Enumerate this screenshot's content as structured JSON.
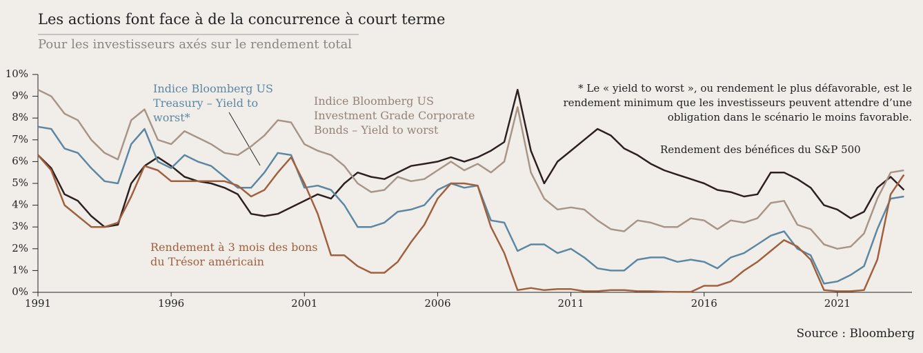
{
  "chart_data": {
    "type": "line",
    "title": "Les actions font face à de la concurrence à court terme",
    "subtitle": "Pour les investisseurs axés sur le rendement total",
    "note": "* Le « yield to worst », ou rendement le plus défavorable, est le rendement minimum que les investisseurs peuvent attendre d’une obligation dans le scénario le moins favorable.",
    "source": "Source : Bloomberg",
    "x": [
      1991,
      1991.5,
      1992,
      1992.5,
      1993,
      1993.5,
      1994,
      1994.5,
      1995,
      1995.5,
      1996,
      1996.5,
      1997,
      1997.5,
      1998,
      1998.5,
      1999,
      1999.5,
      2000,
      2000.5,
      2001,
      2001.5,
      2002,
      2002.5,
      2003,
      2003.5,
      2004,
      2004.5,
      2005,
      2005.5,
      2006,
      2006.5,
      2007,
      2007.5,
      2008,
      2008.5,
      2009,
      2009.5,
      2010,
      2010.5,
      2011,
      2011.5,
      2012,
      2012.5,
      2013,
      2013.5,
      2014,
      2014.5,
      2015,
      2015.5,
      2016,
      2016.5,
      2017,
      2017.5,
      2018,
      2018.5,
      2019,
      2019.5,
      2020,
      2020.5,
      2021,
      2021.5,
      2022,
      2022.5,
      2023,
      2023.5
    ],
    "xlim": [
      1991,
      2023.8
    ],
    "xticks": [
      1991,
      1996,
      2001,
      2006,
      2011,
      2016,
      2021
    ],
    "ylim": [
      0,
      10
    ],
    "yticks": [
      {
        "value": 0,
        "label": "0%"
      },
      {
        "value": 1,
        "label": "1%"
      },
      {
        "value": 2,
        "label": "2%"
      },
      {
        "value": 3,
        "label": "3%"
      },
      {
        "value": 4,
        "label": "4%"
      },
      {
        "value": 5,
        "label": "5%"
      },
      {
        "value": 6,
        "label": "6%"
      },
      {
        "value": 7,
        "label": "7%"
      },
      {
        "value": 8,
        "label": "8%"
      },
      {
        "value": 9,
        "label": "9%"
      },
      {
        "value": 10,
        "label": "10%"
      }
    ],
    "series": [
      {
        "name": "Rendement des bénéfices du S&P 500",
        "color": "#2b1f1f",
        "values": [
          6.3,
          5.7,
          4.5,
          4.2,
          3.5,
          3.0,
          3.1,
          5.0,
          5.8,
          6.2,
          5.8,
          5.3,
          5.1,
          5.0,
          4.8,
          4.5,
          3.6,
          3.5,
          3.6,
          3.9,
          4.2,
          4.5,
          4.3,
          5.0,
          5.5,
          5.3,
          5.2,
          5.5,
          5.8,
          5.9,
          6.0,
          6.2,
          6.0,
          6.2,
          6.5,
          6.9,
          9.3,
          6.5,
          5.0,
          6.0,
          6.5,
          7.0,
          7.5,
          7.2,
          6.6,
          6.3,
          5.9,
          5.6,
          5.4,
          5.2,
          5.0,
          4.7,
          4.6,
          4.4,
          4.5,
          5.5,
          5.5,
          5.2,
          4.8,
          4.0,
          3.8,
          3.4,
          3.7,
          4.8,
          5.3,
          4.7
        ]
      },
      {
        "name": "Indice Bloomberg US Treasury – Yield to worst*",
        "color": "#5b87a3",
        "values": [
          7.6,
          7.5,
          6.6,
          6.4,
          5.7,
          5.1,
          5.0,
          6.8,
          7.5,
          6.0,
          5.7,
          6.3,
          6.0,
          5.8,
          5.3,
          4.8,
          4.8,
          5.5,
          6.4,
          6.3,
          4.8,
          4.9,
          4.7,
          4.0,
          3.0,
          3.0,
          3.2,
          3.7,
          3.8,
          4.0,
          4.7,
          5.0,
          4.8,
          4.9,
          3.3,
          3.2,
          1.9,
          2.2,
          2.2,
          1.8,
          2.0,
          1.6,
          1.1,
          1.0,
          1.0,
          1.5,
          1.6,
          1.6,
          1.4,
          1.5,
          1.4,
          1.1,
          1.6,
          1.8,
          2.2,
          2.6,
          2.8,
          2.0,
          1.7,
          0.4,
          0.5,
          0.8,
          1.2,
          2.9,
          4.3,
          4.4
        ]
      },
      {
        "name": "Indice Bloomberg US Investment Grade Corporate Bonds – Yield to worst",
        "color": "#a8958a",
        "values": [
          9.3,
          9.0,
          8.2,
          7.9,
          7.0,
          6.4,
          6.1,
          7.9,
          8.4,
          7.0,
          6.8,
          7.4,
          7.1,
          6.8,
          6.4,
          6.3,
          6.7,
          7.2,
          7.9,
          7.8,
          6.8,
          6.5,
          6.3,
          5.8,
          5.0,
          4.6,
          4.7,
          5.3,
          5.1,
          5.2,
          5.6,
          6.0,
          5.6,
          5.9,
          5.5,
          6.0,
          8.5,
          5.5,
          4.3,
          3.8,
          3.9,
          3.8,
          3.3,
          2.9,
          2.8,
          3.3,
          3.2,
          3.0,
          3.0,
          3.4,
          3.3,
          2.9,
          3.3,
          3.2,
          3.4,
          4.1,
          4.2,
          3.1,
          2.9,
          2.2,
          2.0,
          2.1,
          2.7,
          4.3,
          5.5,
          5.6
        ]
      },
      {
        "name": "Rendement à 3 mois des bons du Trésor américain",
        "color": "#a0603e",
        "values": [
          6.3,
          5.6,
          4.0,
          3.5,
          3.0,
          3.0,
          3.2,
          4.4,
          5.8,
          5.6,
          5.1,
          5.1,
          5.1,
          5.1,
          5.1,
          4.9,
          4.4,
          4.7,
          5.5,
          6.2,
          5.0,
          3.6,
          1.7,
          1.7,
          1.2,
          0.9,
          0.9,
          1.4,
          2.3,
          3.1,
          4.3,
          5.0,
          5.0,
          4.9,
          3.0,
          1.8,
          0.1,
          0.2,
          0.1,
          0.15,
          0.15,
          0.05,
          0.05,
          0.1,
          0.1,
          0.05,
          0.05,
          0.03,
          0.02,
          0.02,
          0.3,
          0.3,
          0.5,
          1.0,
          1.4,
          1.9,
          2.4,
          2.1,
          1.5,
          0.1,
          0.05,
          0.05,
          0.1,
          1.5,
          4.5,
          5.4
        ]
      }
    ]
  }
}
